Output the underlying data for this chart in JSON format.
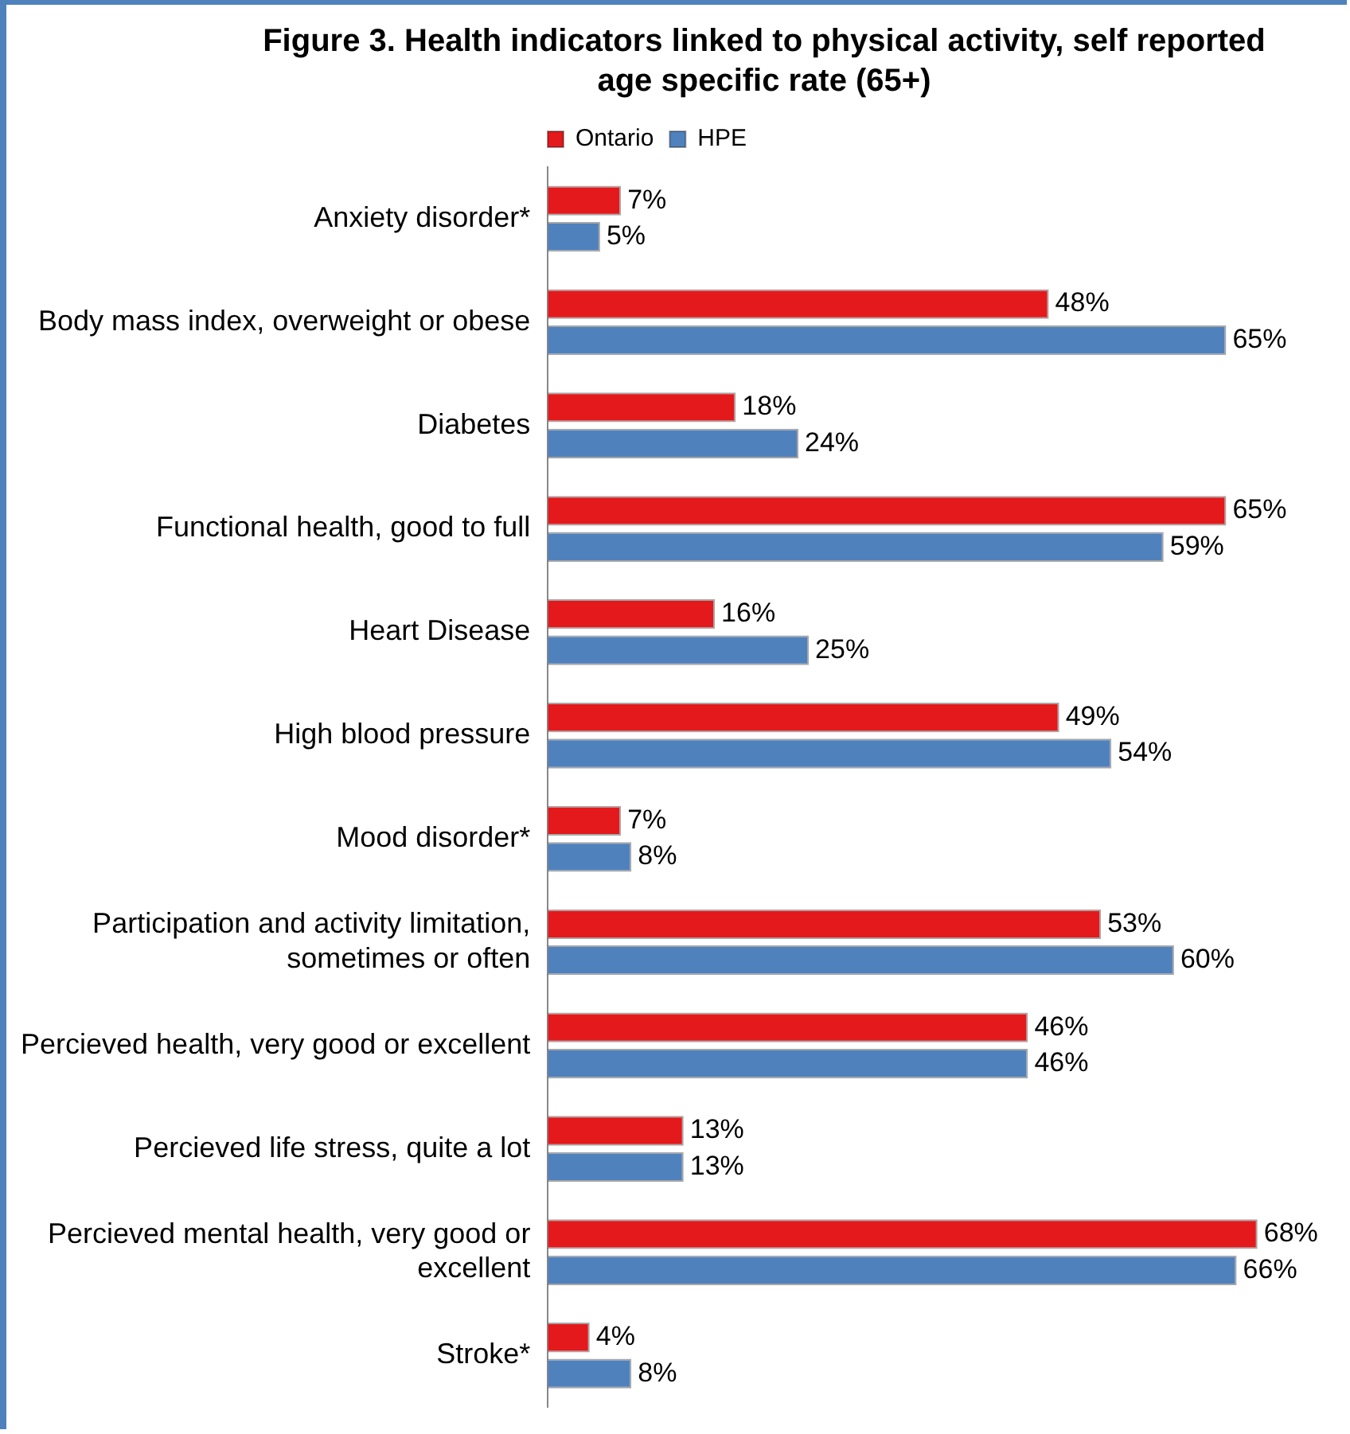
{
  "chart_data": {
    "type": "bar",
    "orientation": "horizontal",
    "title": "Figure 3. Health indicators linked to physical activity, self reported age specific rate (65+)",
    "categories": [
      "Anxiety disorder*",
      "Body mass index, overweight or obese",
      "Diabetes",
      "Functional health, good to full",
      "Heart Disease",
      "High blood pressure",
      "Mood disorder*",
      "Participation and activity limitation, sometimes or often",
      "Percieved health, very good or excellent",
      "Percieved life stress, quite a lot",
      "Percieved mental health, very good or excellent",
      "Stroke*"
    ],
    "series": [
      {
        "name": "Ontario",
        "color": "#e3191c",
        "values": [
          7,
          48,
          18,
          65,
          16,
          49,
          7,
          53,
          46,
          13,
          68,
          4
        ],
        "value_labels": [
          "7%",
          "48%",
          "18%",
          "65%",
          "16%",
          "49%",
          "7%",
          "53%",
          "46%",
          "13%",
          "68%",
          "4%"
        ]
      },
      {
        "name": "HPE",
        "color": "#4f81bd",
        "values": [
          5,
          65,
          24,
          59,
          25,
          54,
          8,
          60,
          46,
          13,
          66,
          8
        ],
        "value_labels": [
          "5%",
          "65%",
          "24%",
          "59%",
          "25%",
          "54%",
          "8%",
          "60%",
          "46%",
          "13%",
          "66%",
          "8%"
        ]
      }
    ],
    "legend": "top",
    "grid": false,
    "tick_labels": "y"
  }
}
